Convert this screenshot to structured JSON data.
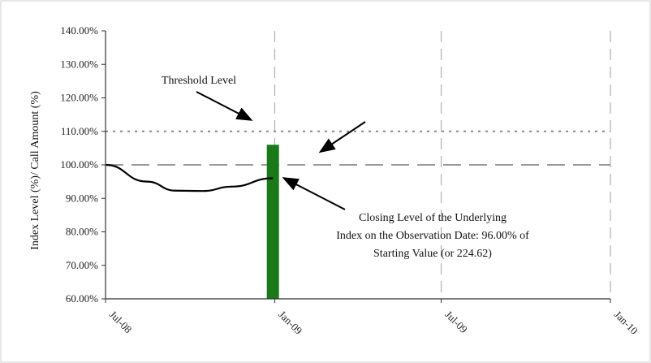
{
  "chart_data": {
    "type": "line",
    "title": "",
    "ylabel": "Index Level (%)/ Call Amount (%)",
    "xlabel": "",
    "ylim": [
      60,
      140
    ],
    "y_ticks": [
      60,
      70,
      80,
      90,
      100,
      110,
      120,
      130,
      140
    ],
    "y_tick_labels": [
      "60.00%",
      "70.00%",
      "80.00%",
      "90.00%",
      "100.00%",
      "110.00%",
      "120.00%",
      "130.00%",
      "140.00%"
    ],
    "x_range": [
      "2008-07-01",
      "2010-01-01"
    ],
    "x_ticks": [
      "2008-07-01",
      "2009-01-01",
      "2009-07-01",
      "2010-01-01"
    ],
    "x_tick_labels": [
      "Jul-08",
      "Jan-09",
      "Jul-09",
      "Jan-10"
    ],
    "grid": {
      "vertical": "dashed",
      "horizontal": "none"
    },
    "series": [
      {
        "kind": "line",
        "color": "#000000",
        "x": [
          "2008-07-01",
          "2008-08-15",
          "2008-09-15",
          "2008-10-15",
          "2008-11-15",
          "2008-12-30"
        ],
        "values": [
          100.0,
          95.0,
          92.3,
          92.2,
          93.5,
          96.0
        ]
      },
      {
        "kind": "bar",
        "color": "#1a7a1a",
        "x": "2008-12-30",
        "value": 106.0
      }
    ],
    "reference_lines": [
      {
        "y": 110,
        "style": "dotted",
        "color": "#888888"
      },
      {
        "y": 100,
        "style": "dashed",
        "color": "#999999"
      }
    ],
    "annotations": [
      {
        "text": "Threshold Level"
      },
      {
        "lines": [
          "Closing Level of the Underlying",
          "Index on the Observation Date: 96.00% of",
          "Starting Value (or 224.62)"
        ]
      }
    ]
  }
}
